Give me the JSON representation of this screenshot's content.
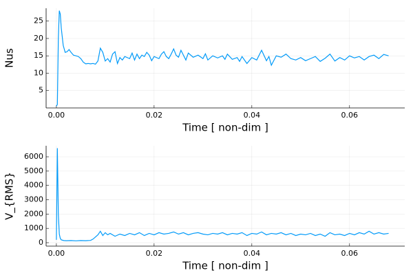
{
  "chart_data": [
    {
      "type": "line",
      "xlabel": "Time [ non-dim ]",
      "ylabel": "Nus",
      "color": "#009af9",
      "grid": true,
      "xlim": [
        -0.0021,
        0.0713
      ],
      "ylim": [
        0,
        28.7
      ],
      "xticks": [
        {
          "value": 0,
          "label": "0.00"
        },
        {
          "value": 0.02,
          "label": "0.02"
        },
        {
          "value": 0.04,
          "label": "0.04"
        },
        {
          "value": 0.06,
          "label": "0.06"
        }
      ],
      "yticks": [
        5,
        10,
        15,
        20,
        25
      ],
      "x": [
        0,
        0.0002,
        0.0004,
        0.0006,
        0.0008,
        0.001,
        0.0014,
        0.0018,
        0.0022,
        0.0026,
        0.003,
        0.0035,
        0.004,
        0.0045,
        0.005,
        0.0055,
        0.006,
        0.0065,
        0.007,
        0.0075,
        0.008,
        0.0085,
        0.009,
        0.0095,
        0.01,
        0.0105,
        0.011,
        0.0115,
        0.012,
        0.0125,
        0.013,
        0.0135,
        0.014,
        0.015,
        0.0155,
        0.016,
        0.0165,
        0.017,
        0.0175,
        0.018,
        0.0185,
        0.019,
        0.0195,
        0.02,
        0.021,
        0.0215,
        0.022,
        0.0225,
        0.023,
        0.0235,
        0.024,
        0.0245,
        0.025,
        0.0255,
        0.026,
        0.0265,
        0.027,
        0.028,
        0.029,
        0.03,
        0.0305,
        0.031,
        0.032,
        0.033,
        0.034,
        0.0345,
        0.035,
        0.036,
        0.037,
        0.0375,
        0.038,
        0.039,
        0.04,
        0.041,
        0.042,
        0.043,
        0.0435,
        0.044,
        0.045,
        0.046,
        0.047,
        0.048,
        0.049,
        0.05,
        0.051,
        0.052,
        0.053,
        0.054,
        0.055,
        0.056,
        0.057,
        0.058,
        0.059,
        0.06,
        0.061,
        0.062,
        0.063,
        0.064,
        0.065,
        0.066,
        0.067,
        0.068
      ],
      "values": [
        0.5,
        1,
        20,
        28,
        27,
        23,
        18,
        16,
        16.2,
        16.8,
        16,
        15.2,
        15,
        14.8,
        14.2,
        13.2,
        12.7,
        12.8,
        12.7,
        12.8,
        12.6,
        13.5,
        17.2,
        16,
        13.5,
        14.2,
        13.2,
        15.5,
        16.2,
        12.8,
        14.5,
        13.8,
        14.8,
        14.2,
        15.8,
        13.8,
        15.5,
        14.2,
        15.2,
        14.8,
        16,
        15.2,
        13.6,
        14.8,
        14.2,
        15.5,
        16.2,
        14.8,
        14.2,
        15.5,
        17,
        15.2,
        14.6,
        16.6,
        15.2,
        13.8,
        15.8,
        14.6,
        15.2,
        14.2,
        15.6,
        13.8,
        15,
        14.4,
        15,
        14,
        15.5,
        14,
        14.5,
        13.4,
        14.8,
        12.8,
        14.5,
        13.8,
        16.6,
        13.6,
        14.8,
        12.3,
        15,
        14.6,
        15.5,
        14.2,
        13.8,
        14.5,
        13.6,
        14.2,
        14.8,
        13.4,
        14.3,
        15.5,
        13.5,
        14.5,
        13.8,
        15,
        14.4,
        14.8,
        13.8,
        14.8,
        15.2,
        14.2,
        15.4,
        15
      ]
    },
    {
      "type": "line",
      "xlabel": "Time [ non-dim ]",
      "ylabel": "V_{RMS}",
      "color": "#009af9",
      "grid": true,
      "xlim": [
        -0.0021,
        0.0713
      ],
      "ylim": [
        -240,
        6770
      ],
      "xticks": [
        {
          "value": 0,
          "label": "0.00"
        },
        {
          "value": 0.02,
          "label": "0.02"
        },
        {
          "value": 0.04,
          "label": "0.04"
        },
        {
          "value": 0.06,
          "label": "0.06"
        }
      ],
      "yticks": [
        0,
        1000,
        2000,
        3000,
        4000,
        5000,
        6000
      ],
      "x": [
        0,
        0.0002,
        0.0004,
        0.0006,
        0.0008,
        0.001,
        0.0015,
        0.002,
        0.003,
        0.004,
        0.005,
        0.006,
        0.007,
        0.0075,
        0.008,
        0.0085,
        0.009,
        0.0095,
        0.01,
        0.0105,
        0.011,
        0.012,
        0.013,
        0.014,
        0.015,
        0.016,
        0.017,
        0.018,
        0.019,
        0.02,
        0.021,
        0.022,
        0.023,
        0.024,
        0.025,
        0.026,
        0.027,
        0.028,
        0.029,
        0.03,
        0.031,
        0.032,
        0.033,
        0.034,
        0.035,
        0.036,
        0.037,
        0.038,
        0.039,
        0.04,
        0.041,
        0.042,
        0.043,
        0.044,
        0.045,
        0.046,
        0.047,
        0.048,
        0.049,
        0.05,
        0.051,
        0.052,
        0.053,
        0.054,
        0.055,
        0.056,
        0.057,
        0.058,
        0.059,
        0.06,
        0.061,
        0.062,
        0.063,
        0.064,
        0.065,
        0.066,
        0.067,
        0.068
      ],
      "values": [
        200,
        6600,
        2000,
        600,
        300,
        200,
        150,
        140,
        150,
        130,
        150,
        140,
        160,
        250,
        400,
        550,
        800,
        500,
        700,
        550,
        650,
        450,
        600,
        500,
        650,
        550,
        700,
        500,
        650,
        550,
        700,
        600,
        650,
        750,
        600,
        700,
        550,
        650,
        700,
        600,
        550,
        650,
        600,
        700,
        550,
        650,
        600,
        700,
        500,
        650,
        600,
        750,
        550,
        650,
        600,
        700,
        550,
        650,
        500,
        600,
        550,
        650,
        500,
        600,
        450,
        700,
        550,
        600,
        500,
        650,
        550,
        700,
        600,
        800,
        600,
        700,
        600,
        650
      ]
    }
  ]
}
